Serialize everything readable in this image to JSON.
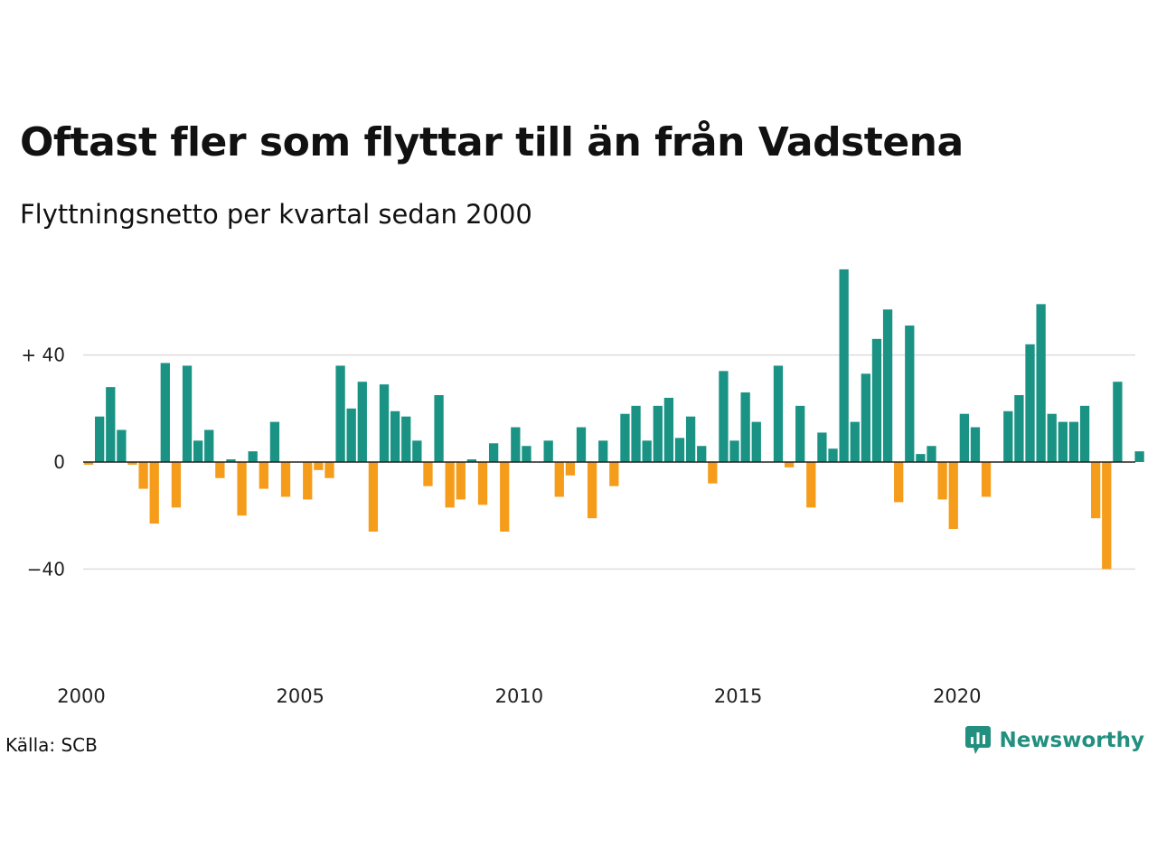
{
  "title": "Oftast fler som flyttar till än från Vadstena",
  "subtitle": "Flyttningsnetto per kvartal sedan 2000",
  "source": "Källa: SCB",
  "brand": {
    "name": "Newsworthy",
    "icon": "newsworthy-logo-icon",
    "color": "#23907f"
  },
  "colors": {
    "positive": "#1a9384",
    "negative": "#f59d1b",
    "grid": "#dddddd",
    "zero_line": "#222222"
  },
  "chart_data": {
    "type": "bar",
    "x_start": "2000 Q1",
    "x_end": "2024 Q1",
    "x_ticks": [
      "2000",
      "2005",
      "2010",
      "2015",
      "2020"
    ],
    "y_ticks": [
      "−40",
      "0",
      "+ 40"
    ],
    "ylim": [
      -65,
      72
    ],
    "grid": "horizontal",
    "categories": [
      "2000 Q1",
      "2000 Q2",
      "2000 Q3",
      "2000 Q4",
      "2001 Q1",
      "2001 Q2",
      "2001 Q3",
      "2001 Q4",
      "2002 Q1",
      "2002 Q2",
      "2002 Q3",
      "2002 Q4",
      "2003 Q1",
      "2003 Q2",
      "2003 Q3",
      "2003 Q4",
      "2004 Q1",
      "2004 Q2",
      "2004 Q3",
      "2004 Q4",
      "2005 Q1",
      "2005 Q2",
      "2005 Q3",
      "2005 Q4",
      "2006 Q1",
      "2006 Q2",
      "2006 Q3",
      "2006 Q4",
      "2007 Q1",
      "2007 Q2",
      "2007 Q3",
      "2007 Q4",
      "2008 Q1",
      "2008 Q2",
      "2008 Q3",
      "2008 Q4",
      "2009 Q1",
      "2009 Q2",
      "2009 Q3",
      "2009 Q4",
      "2010 Q1",
      "2010 Q2",
      "2010 Q3",
      "2010 Q4",
      "2011 Q1",
      "2011 Q2",
      "2011 Q3",
      "2011 Q4",
      "2012 Q1",
      "2012 Q2",
      "2012 Q3",
      "2012 Q4",
      "2013 Q1",
      "2013 Q2",
      "2013 Q3",
      "2013 Q4",
      "2014 Q1",
      "2014 Q2",
      "2014 Q3",
      "2014 Q4",
      "2015 Q1",
      "2015 Q2",
      "2015 Q3",
      "2015 Q4",
      "2016 Q1",
      "2016 Q2",
      "2016 Q3",
      "2016 Q4",
      "2017 Q1",
      "2017 Q2",
      "2017 Q3",
      "2017 Q4",
      "2018 Q1",
      "2018 Q2",
      "2018 Q3",
      "2018 Q4",
      "2019 Q1",
      "2019 Q2",
      "2019 Q3",
      "2019 Q4",
      "2020 Q1",
      "2020 Q2",
      "2020 Q3",
      "2020 Q4",
      "2021 Q1",
      "2021 Q2",
      "2021 Q3",
      "2021 Q4",
      "2022 Q1",
      "2022 Q2",
      "2022 Q3",
      "2022 Q4",
      "2023 Q1",
      "2023 Q2",
      "2023 Q3",
      "2023 Q4",
      "2024 Q1"
    ],
    "values": [
      -1,
      17,
      28,
      12,
      -1,
      -10,
      -23,
      37,
      -17,
      36,
      8,
      12,
      -6,
      1,
      -20,
      4,
      -10,
      15,
      -13,
      0,
      -14,
      -3,
      -6,
      36,
      20,
      30,
      -26,
      29,
      19,
      17,
      8,
      -9,
      25,
      -17,
      -14,
      1,
      -16,
      7,
      -26,
      13,
      6,
      0,
      8,
      -13,
      -5,
      13,
      -21,
      8,
      -9,
      18,
      21,
      8,
      21,
      24,
      9,
      17,
      6,
      -8,
      34,
      8,
      26,
      15,
      0,
      36,
      -2,
      21,
      -17,
      11,
      5,
      72,
      15,
      33,
      46,
      57,
      -15,
      51,
      3,
      6,
      -14,
      -25,
      18,
      13,
      -13,
      0,
      19,
      25,
      44,
      59,
      18,
      15,
      15,
      21,
      -21,
      -40,
      30,
      0,
      4
    ]
  }
}
